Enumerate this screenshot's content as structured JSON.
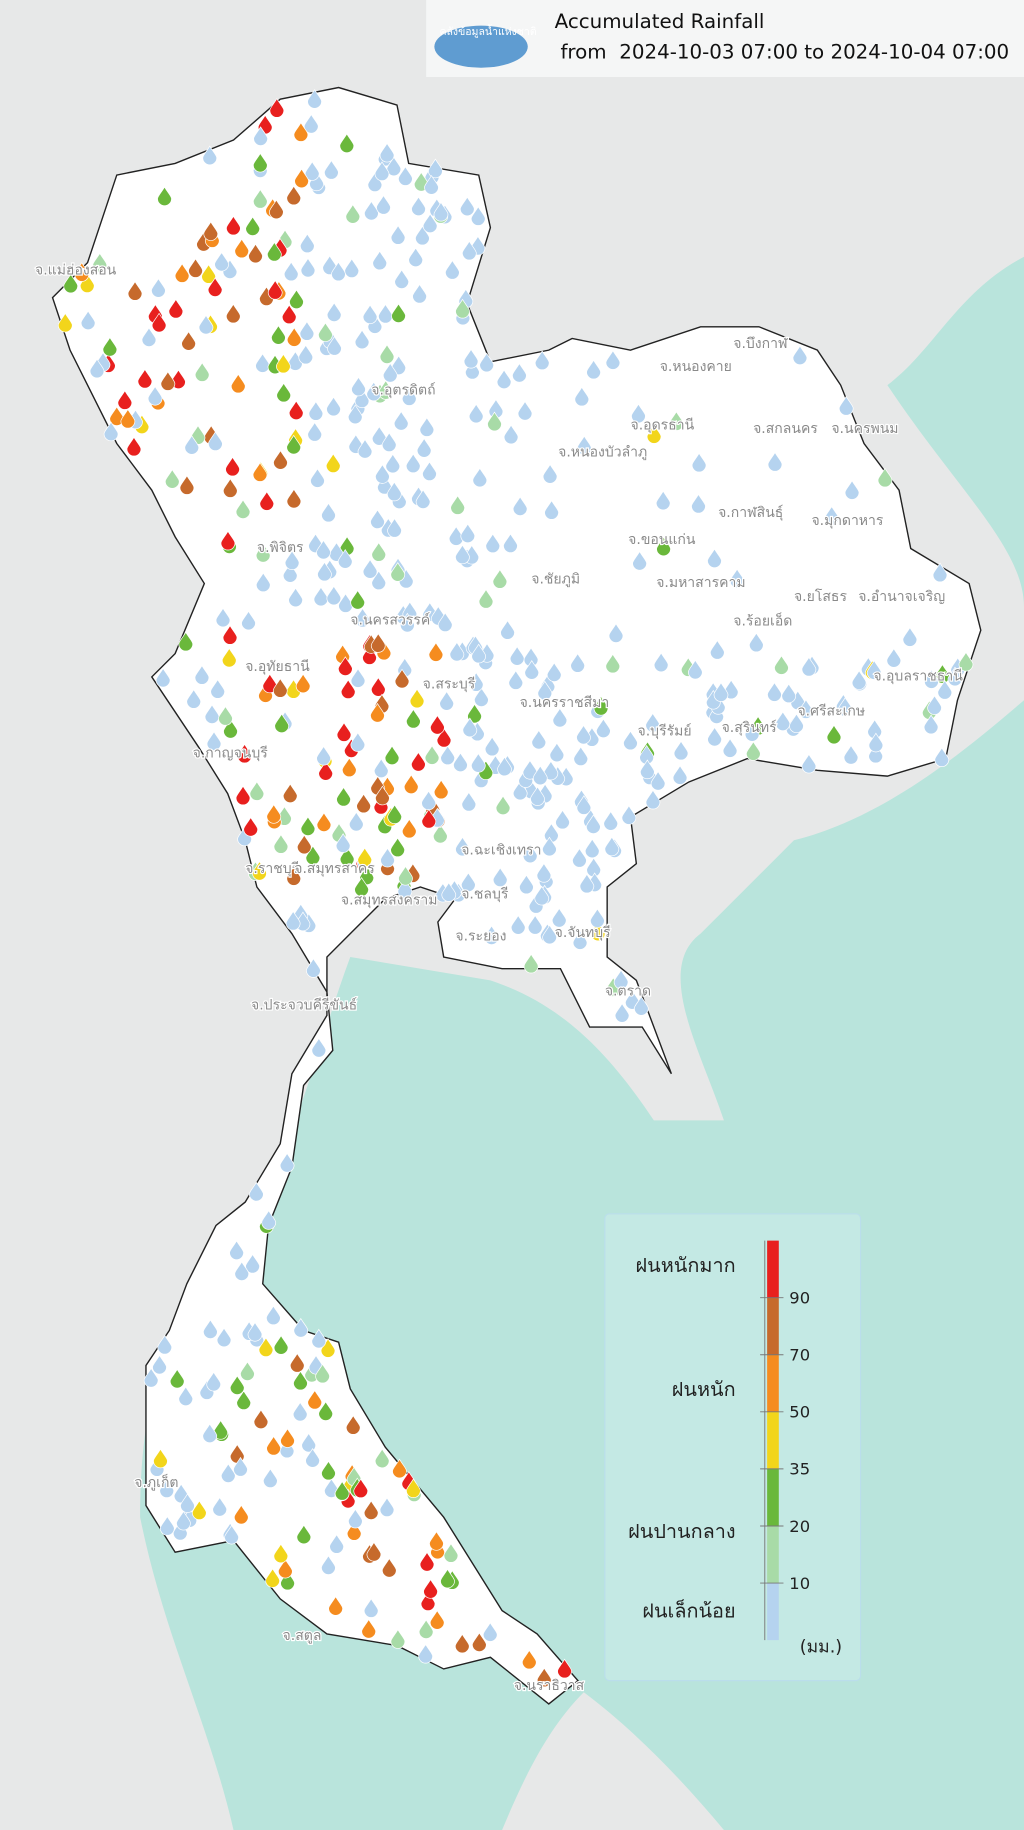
{
  "header": {
    "logo_text": "คลังข้อมูลน้ำแห่งชาติ",
    "title": "Accumulated Rainfall",
    "subtitle": "from  2024-10-03 07:00 to 2024-10-04 07:00"
  },
  "map": {
    "labels": [
      "จ.บึงกาฬ",
      "จ.หนองคาย",
      "จ.อุดรธานี",
      "จ.สกลนคร",
      "จ.นครพนม",
      "จ.หนองบัวลำภู",
      "จ.กาฬสินธุ์",
      "จ.มุกดาหาร",
      "จ.ขอนแก่น",
      "จ.มหาสารคาม",
      "จ.ยโสธร",
      "จ.อำนาจเจริญ",
      "จ.ร้อยเอ็ด",
      "จ.อุบลราชธานี",
      "จ.ศรีสะเกษ",
      "จ.สุรินทร์",
      "จ.บุรีรัมย์",
      "จ.นครราชสีมา",
      "จ.ชัยภูมิ",
      "จ.นครสวรรค์",
      "จ.อุทัยธานี",
      "จ.กาญจนบุรี",
      "จ.ราชบุรี",
      "จ.สมุทรสาคร",
      "จ.สมุทรสงคราม",
      "จ.ชลบุรี",
      "จ.ระยอง",
      "จ.จันทบุรี",
      "จ.ตราด",
      "จ.ประจวบคีรีขันธ์",
      "จ.ภูเก็ต",
      "จ.สตูล",
      "จ.นราธิวาส",
      "จ.แม่ฮ่องสอน",
      "จ.อุตรดิตถ์",
      "จ.พิจิตร",
      "จ.สระบุรี",
      "จ.ฉะเชิงเทรา"
    ]
  },
  "legend": {
    "classes": [
      "ฝนหนักมาก",
      "ฝนหนัก",
      "ฝนปานกลาง",
      "ฝนเล็กน้อย"
    ],
    "ticks": [
      90,
      70,
      50,
      35,
      20,
      10
    ],
    "colors": [
      "#e8201e",
      "#c66a2c",
      "#f58c1f",
      "#f2d51b",
      "#6ab83b",
      "#a8dba7",
      "#b5d3ef"
    ],
    "unit": "(มม.)"
  }
}
